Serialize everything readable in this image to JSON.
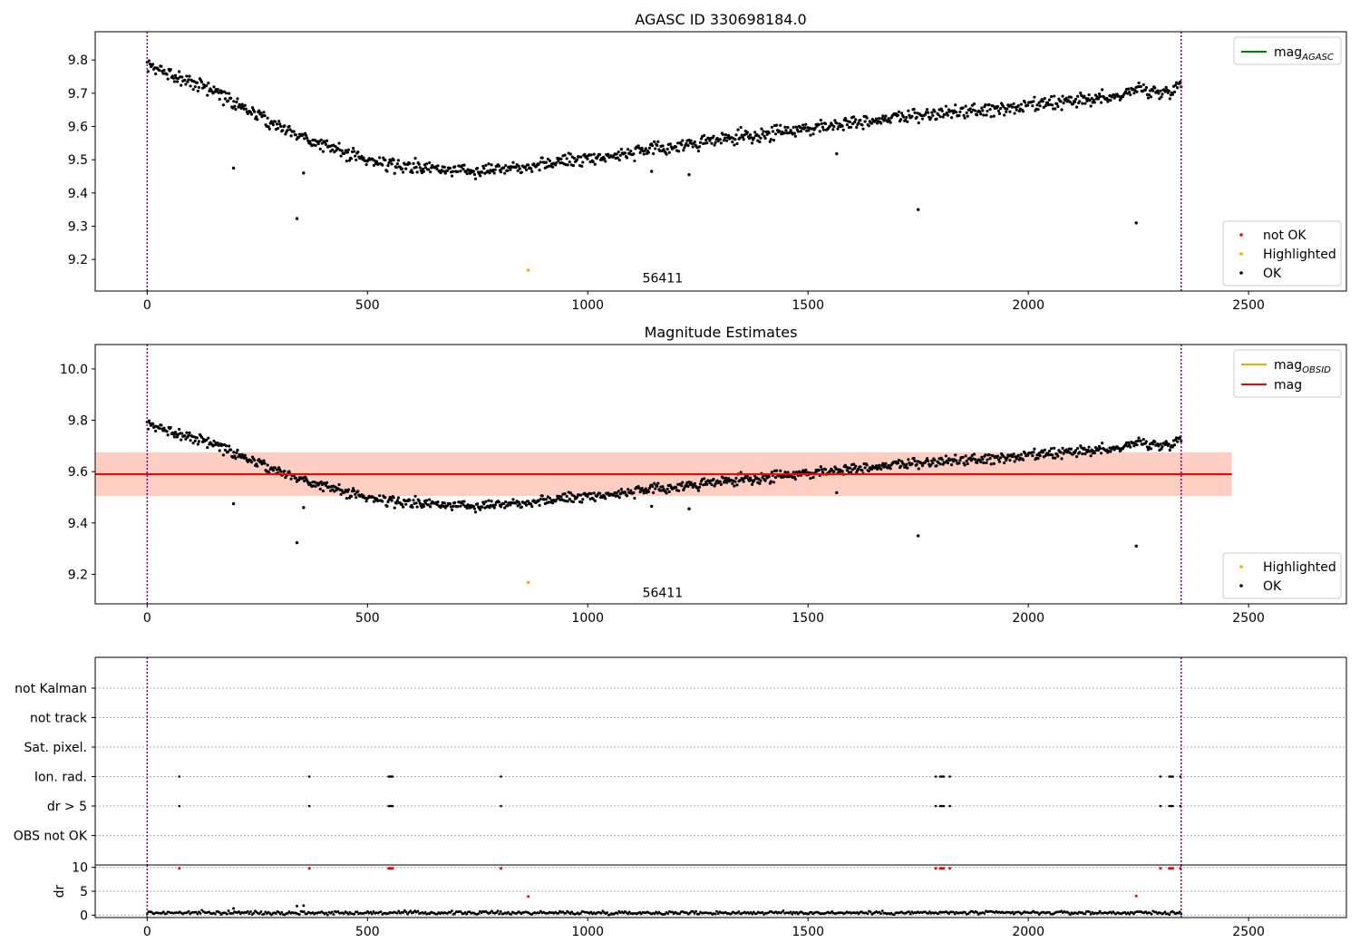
{
  "figure": {
    "background": "#ffffff"
  },
  "chart_data": [
    {
      "type": "scatter",
      "title": "AGASC ID 330698184.0",
      "xlabel": "",
      "ylabel": "",
      "xlim": [
        -118,
        2722
      ],
      "ylim": [
        9.105,
        9.885
      ],
      "x_ticks": [
        0,
        500,
        1000,
        1500,
        2000,
        2500
      ],
      "x_tick_labels": [
        "0",
        "500",
        "1000",
        "1500",
        "2000",
        "2500"
      ],
      "y_ticks": [
        9.2,
        9.3,
        9.4,
        9.5,
        9.6,
        9.7,
        9.8
      ],
      "y_tick_labels": [
        "9.2",
        "9.3",
        "9.4",
        "9.5",
        "9.6",
        "9.7",
        "9.8"
      ],
      "vlines": {
        "x": [
          0,
          2347
        ],
        "color": "#800080",
        "style": "dotted"
      },
      "annotation": {
        "text": "56411",
        "x": 1170,
        "y": 9.145
      },
      "trend": {
        "name": "OK",
        "color": "#000000",
        "x_start": 0,
        "x_end": 2347,
        "knots_x": [
          0,
          50,
          100,
          150,
          200,
          250,
          300,
          350,
          400,
          450,
          500,
          550,
          600,
          650,
          700,
          750,
          800,
          850,
          900,
          950,
          1000,
          1100,
          1200,
          1300,
          1400,
          1500,
          1600,
          1700,
          1800,
          1900,
          2000,
          2100,
          2200,
          2250,
          2300,
          2347
        ],
        "knots_y": [
          9.78,
          9.76,
          9.735,
          9.71,
          9.67,
          9.635,
          9.6,
          9.57,
          9.545,
          9.52,
          9.5,
          9.485,
          9.478,
          9.472,
          9.47,
          9.47,
          9.475,
          9.48,
          9.488,
          9.498,
          9.505,
          9.52,
          9.54,
          9.56,
          9.575,
          9.595,
          9.612,
          9.628,
          9.638,
          9.648,
          9.66,
          9.675,
          9.69,
          9.715,
          9.7,
          9.725
        ],
        "point_count": 1100,
        "scatter": 0.01
      },
      "outliers": [
        {
          "series": "OK",
          "x": 196,
          "y": 9.475
        },
        {
          "series": "OK",
          "x": 340,
          "y": 9.323
        },
        {
          "series": "OK",
          "x": 355,
          "y": 9.46
        },
        {
          "series": "OK",
          "x": 1145,
          "y": 9.465
        },
        {
          "series": "OK",
          "x": 1230,
          "y": 9.455
        },
        {
          "series": "OK",
          "x": 1565,
          "y": 9.518
        },
        {
          "series": "OK",
          "x": 1750,
          "y": 9.35
        },
        {
          "series": "OK",
          "x": 2245,
          "y": 9.31
        },
        {
          "series": "Highlighted",
          "x": 865,
          "y": 9.168
        }
      ],
      "legend_lines": [
        {
          "label": "mag",
          "subscript": "AGASC",
          "color": "#008000"
        }
      ],
      "legend_markers": [
        {
          "label": "not OK",
          "color": "#ff0000"
        },
        {
          "label": "Highlighted",
          "color": "#ffa500"
        },
        {
          "label": "OK",
          "color": "#000000"
        }
      ]
    },
    {
      "type": "scatter",
      "title": "Magnitude Estimates",
      "xlabel": "",
      "ylabel": "",
      "xlim": [
        -118,
        2722
      ],
      "ylim": [
        9.085,
        10.095
      ],
      "x_ticks": [
        0,
        500,
        1000,
        1500,
        2000,
        2500
      ],
      "x_tick_labels": [
        "0",
        "500",
        "1000",
        "1500",
        "2000",
        "2500"
      ],
      "y_ticks": [
        9.2,
        9.4,
        9.6,
        9.8,
        10.0
      ],
      "y_tick_labels": [
        "9.2",
        "9.4",
        "9.6",
        "9.8",
        "10.0"
      ],
      "vlines": {
        "x": [
          0,
          2347
        ],
        "color": "#800080",
        "style": "dotted"
      },
      "annotation": {
        "text": "56411",
        "x": 1170,
        "y": 9.13
      },
      "bands": [
        {
          "x0": -118,
          "x1": 2462,
          "y0": 9.505,
          "y1": 9.675,
          "color": "#ffb6c1",
          "opacity": 0.35
        },
        {
          "x0": -118,
          "x1": 2462,
          "y0": 9.505,
          "y1": 9.675,
          "color": "#ffa07a",
          "opacity": 0.35
        }
      ],
      "hlines": [
        {
          "name": "mag",
          "y": 9.59,
          "x0": -118,
          "x1": 2462,
          "color": "#ff0000"
        }
      ],
      "trend": {
        "name": "OK",
        "color": "#000000",
        "x_start": 0,
        "x_end": 2347,
        "knots_x": [
          0,
          50,
          100,
          150,
          200,
          250,
          300,
          350,
          400,
          450,
          500,
          550,
          600,
          650,
          700,
          750,
          800,
          850,
          900,
          950,
          1000,
          1100,
          1200,
          1300,
          1400,
          1500,
          1600,
          1700,
          1800,
          1900,
          2000,
          2100,
          2200,
          2250,
          2300,
          2347
        ],
        "knots_y": [
          9.78,
          9.76,
          9.735,
          9.71,
          9.67,
          9.635,
          9.6,
          9.57,
          9.545,
          9.52,
          9.5,
          9.485,
          9.478,
          9.472,
          9.47,
          9.47,
          9.475,
          9.48,
          9.488,
          9.498,
          9.505,
          9.52,
          9.54,
          9.56,
          9.575,
          9.595,
          9.612,
          9.628,
          9.638,
          9.648,
          9.66,
          9.675,
          9.69,
          9.715,
          9.7,
          9.725
        ],
        "point_count": 1100,
        "scatter": 0.01
      },
      "outliers": [
        {
          "series": "OK",
          "x": 196,
          "y": 9.475
        },
        {
          "series": "OK",
          "x": 340,
          "y": 9.323
        },
        {
          "series": "OK",
          "x": 355,
          "y": 9.46
        },
        {
          "series": "OK",
          "x": 1145,
          "y": 9.465
        },
        {
          "series": "OK",
          "x": 1230,
          "y": 9.455
        },
        {
          "series": "OK",
          "x": 1565,
          "y": 9.518
        },
        {
          "series": "OK",
          "x": 1750,
          "y": 9.35
        },
        {
          "series": "OK",
          "x": 2245,
          "y": 9.31
        },
        {
          "series": "Highlighted",
          "x": 865,
          "y": 9.168
        }
      ],
      "legend_lines": [
        {
          "label": "mag",
          "subscript": "OBSID",
          "color": "#ffa500"
        },
        {
          "label": "mag",
          "subscript": "",
          "color": "#ff0000"
        }
      ],
      "legend_markers": [
        {
          "label": "Highlighted",
          "color": "#ffa500"
        },
        {
          "label": "OK",
          "color": "#000000"
        }
      ]
    },
    {
      "type": "scatter",
      "title": "",
      "xlabel": "",
      "ylabel": "",
      "xlim": [
        -118,
        2722
      ],
      "categories": [
        "not Kalman",
        "not track",
        "Sat. pixel.",
        "Ion. rad.",
        "dr > 5",
        "OBS not OK"
      ],
      "flag_x": {
        "Ion. rad.": [
          73,
          368,
          548,
          551,
          554,
          557,
          803,
          1790,
          1800,
          1804,
          1808,
          1822,
          2300,
          2320,
          2324,
          2328,
          2345
        ],
        "dr > 5": [
          73,
          368,
          548,
          551,
          554,
          557,
          803,
          1790,
          1800,
          1804,
          1808,
          1822,
          2300,
          2320,
          2324,
          2328,
          2345
        ]
      },
      "vlines": {
        "x": [
          0,
          2347
        ],
        "color": "#800080",
        "style": "dotted"
      }
    },
    {
      "type": "scatter",
      "title": "",
      "xlabel": "",
      "ylabel": "dr",
      "xlim": [
        -118,
        2722
      ],
      "ylim": [
        -0.5,
        10.5
      ],
      "x_ticks": [
        0,
        500,
        1000,
        1500,
        2000,
        2500
      ],
      "x_tick_labels": [
        "0",
        "500",
        "1000",
        "1500",
        "2000",
        "2500"
      ],
      "y_ticks": [
        0,
        5,
        10
      ],
      "y_tick_labels": [
        "0",
        "5",
        "10"
      ],
      "vlines": {
        "x": [
          0,
          2347
        ],
        "color": "#800080",
        "style": "dotted"
      },
      "baseline": {
        "name": "OK",
        "color": "#000000",
        "x_start": 0,
        "x_end": 2347,
        "mean": 0.5,
        "spread": 0.35,
        "point_count": 700
      },
      "points": [
        {
          "series": "OK",
          "x": 196,
          "y": 1.4
        },
        {
          "series": "OK",
          "x": 340,
          "y": 1.9
        },
        {
          "series": "OK",
          "x": 355,
          "y": 2.0
        },
        {
          "series": "not OK",
          "x": 73,
          "y": 9.8
        },
        {
          "series": "not OK",
          "x": 368,
          "y": 9.8
        },
        {
          "series": "not OK",
          "x": 548,
          "y": 9.8
        },
        {
          "series": "not OK",
          "x": 551,
          "y": 9.8
        },
        {
          "series": "not OK",
          "x": 554,
          "y": 9.8
        },
        {
          "series": "not OK",
          "x": 557,
          "y": 9.8
        },
        {
          "series": "not OK",
          "x": 803,
          "y": 9.8
        },
        {
          "series": "not OK",
          "x": 865,
          "y": 3.9
        },
        {
          "series": "not OK",
          "x": 1790,
          "y": 9.8
        },
        {
          "series": "not OK",
          "x": 1800,
          "y": 9.8
        },
        {
          "series": "not OK",
          "x": 1804,
          "y": 9.8
        },
        {
          "series": "not OK",
          "x": 1808,
          "y": 9.8
        },
        {
          "series": "not OK",
          "x": 1822,
          "y": 9.8
        },
        {
          "series": "not OK",
          "x": 2245,
          "y": 4.0
        },
        {
          "series": "not OK",
          "x": 2300,
          "y": 9.8
        },
        {
          "series": "not OK",
          "x": 2320,
          "y": 9.8
        },
        {
          "series": "not OK",
          "x": 2324,
          "y": 9.8
        },
        {
          "series": "not OK",
          "x": 2328,
          "y": 9.8
        },
        {
          "series": "not OK",
          "x": 2345,
          "y": 9.8
        }
      ],
      "series_colors": {
        "OK": "#000000",
        "not OK": "#ff0000",
        "Highlighted": "#ffa500"
      }
    }
  ]
}
